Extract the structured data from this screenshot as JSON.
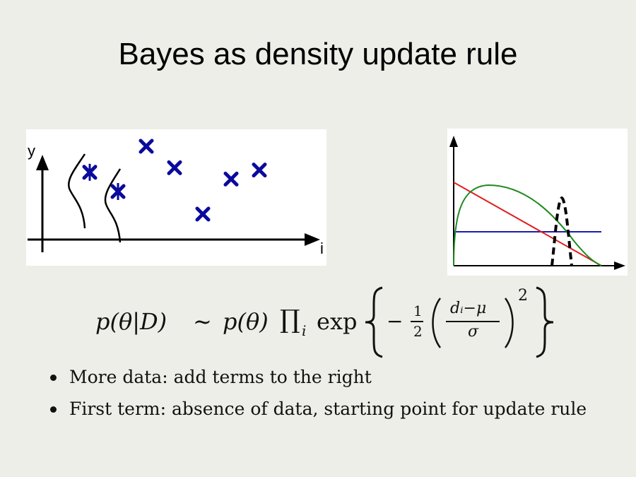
{
  "title": "Bayes as density update rule",
  "left_plot": {
    "y_axis_label": "y",
    "x_axis_label": "i",
    "marker_color": "#0a0a9e",
    "points": [
      {
        "i": 1,
        "y": 0.62
      },
      {
        "i": 2,
        "y": 0.45
      },
      {
        "i": 3,
        "y": 0.85
      },
      {
        "i": 4,
        "y": 0.66
      },
      {
        "i": 5,
        "y": 0.25
      },
      {
        "i": 6,
        "y": 0.56
      },
      {
        "i": 7,
        "y": 0.64
      }
    ]
  },
  "right_plot": {
    "colors": {
      "uniform": "#1c1cb0",
      "decreasing": "#e02020",
      "hump": "#1f8a1f",
      "peaked": "#000000"
    }
  },
  "formula": {
    "lhs": "p(θ|D)",
    "sim": "∼",
    "prior": "p(θ)",
    "prod": "∏",
    "prod_sub": "i",
    "exp": "exp",
    "minus": "−",
    "half_num": "1",
    "half_den": "2",
    "frac_num": "dᵢ−μ",
    "frac_den": "σ",
    "power": "2"
  },
  "bullets": [
    "More data: add terms to the right",
    "First term: absence of data, starting point for update rule"
  ]
}
